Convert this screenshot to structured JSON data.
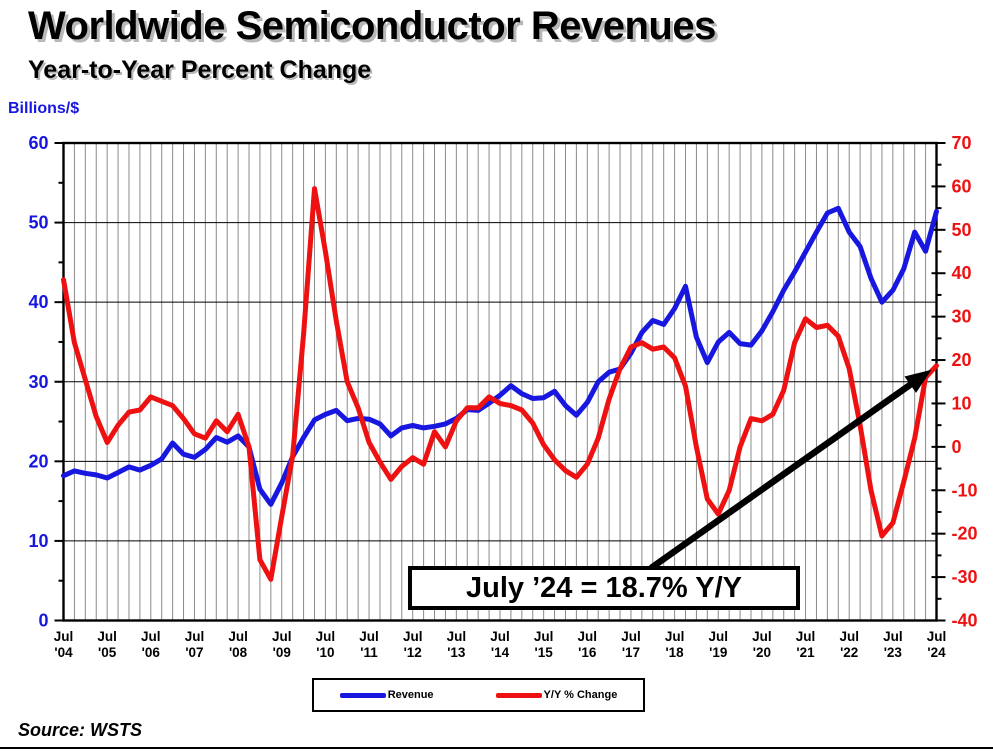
{
  "header": {
    "title": "Worldwide Semiconductor Revenues",
    "subtitle": "Year-to-Year Percent Change"
  },
  "footer": {
    "source": "Source: WSTS"
  },
  "chart_data": {
    "type": "line",
    "title": "Worldwide Semiconductor Revenues",
    "subtitle": "Year-to-Year Percent Change",
    "x": {
      "start": "Jul 2004",
      "end": "Jul 2024",
      "step": "quarterly",
      "month_label": "Jul",
      "year_labels": [
        "'04",
        "'05",
        "'06",
        "'07",
        "'08",
        "'09",
        "'10",
        "'11",
        "'12",
        "'13",
        "'14",
        "'15",
        "'16",
        "'17",
        "'18",
        "'19",
        "'20",
        "'21",
        "'22",
        "'23",
        "'24"
      ]
    },
    "left_axis": {
      "label": "Billions/$",
      "min": 0,
      "max": 60,
      "tick_step": 10,
      "minor_tick_step": 5,
      "color": "#1717e0"
    },
    "right_axis": {
      "label": "Y/Y %",
      "min": -40,
      "max": 70,
      "tick_step": 10,
      "minor_tick_step": 5,
      "color": "#ee1111"
    },
    "grid": {
      "vertical": "quarterly",
      "horizontal": "every 10 left-axis units",
      "v_color": "#8a8a8a",
      "h_color": "#000000"
    },
    "legend": {
      "position": "bottom-center"
    },
    "annotation": {
      "text": "July ’24 = 18.7% Y/Y"
    },
    "series": [
      {
        "name": "Revenue",
        "axis": "left",
        "color": "#1717e0",
        "values": [
          18.2,
          18.8,
          18.5,
          18.3,
          17.9,
          18.6,
          19.3,
          18.9,
          19.5,
          20.3,
          22.3,
          20.9,
          20.5,
          21.5,
          23.0,
          22.4,
          23.2,
          21.8,
          16.5,
          14.6,
          17.3,
          20.6,
          23.0,
          25.2,
          25.9,
          26.4,
          25.1,
          25.4,
          25.3,
          24.7,
          23.2,
          24.2,
          24.5,
          24.2,
          24.4,
          24.7,
          25.4,
          26.5,
          26.4,
          27.3,
          28.3,
          29.5,
          28.5,
          27.9,
          28.0,
          28.8,
          27.0,
          25.8,
          27.4,
          30.0,
          31.2,
          31.6,
          33.6,
          36.2,
          37.7,
          37.2,
          39.2,
          42.0,
          35.6,
          32.4,
          35.0,
          36.2,
          34.8,
          34.6,
          36.4,
          38.8,
          41.5,
          43.8,
          46.3,
          48.8,
          51.2,
          51.8,
          48.8,
          47.0,
          43.0,
          40.0,
          41.5,
          44.2,
          48.8,
          46.4,
          51.4
        ]
      },
      {
        "name": "Y/Y % Change",
        "axis": "right",
        "color": "#ee1111",
        "values": [
          38.5,
          24.0,
          15.5,
          7.0,
          1.0,
          5.0,
          8.0,
          8.5,
          11.5,
          10.5,
          9.5,
          6.5,
          3.0,
          2.0,
          6.0,
          3.5,
          7.5,
          0.0,
          -26.0,
          -30.5,
          -16.0,
          -2.0,
          26.0,
          59.5,
          45.0,
          29.0,
          15.0,
          9.0,
          1.0,
          -3.5,
          -7.5,
          -4.5,
          -2.5,
          -4.0,
          3.5,
          0.0,
          6.0,
          9.0,
          9.0,
          11.5,
          10.0,
          9.5,
          8.5,
          5.5,
          0.5,
          -3.0,
          -5.5,
          -7.0,
          -4.0,
          2.0,
          11.0,
          18.0,
          23.0,
          24.0,
          22.5,
          23.0,
          20.5,
          14.0,
          0.0,
          -12.0,
          -15.5,
          -10.0,
          0.0,
          6.5,
          6.0,
          7.5,
          13.0,
          24.0,
          29.5,
          27.5,
          28.0,
          25.5,
          18.0,
          5.0,
          -10.0,
          -20.5,
          -17.5,
          -8.0,
          2.0,
          16.0,
          18.7
        ]
      }
    ]
  }
}
